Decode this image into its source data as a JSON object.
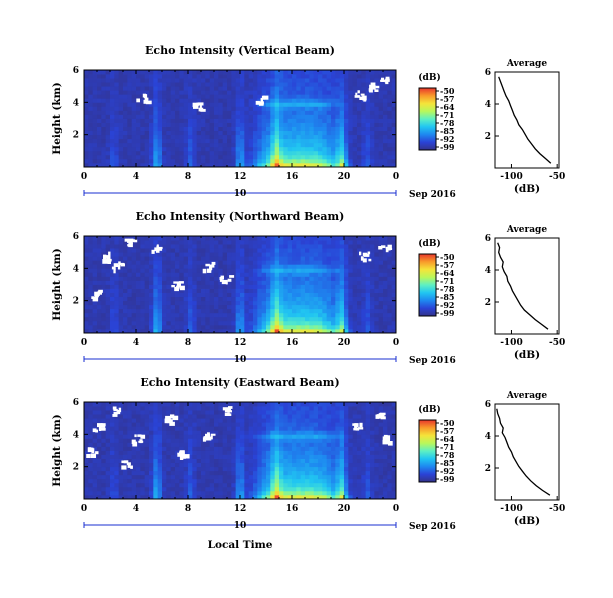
{
  "colors": {
    "colormap": [
      "#33328a",
      "#2a43d6",
      "#1e88f0",
      "#21c6f1",
      "#5ef0c3",
      "#b9f75b",
      "#f5e43a",
      "#f89a2a",
      "#e8352c"
    ],
    "missing": "#ffffff",
    "date_axis": "#1a2fd0"
  },
  "x_axis": {
    "label": "Local Time",
    "day_label": "10",
    "month_label": "Sep 2016"
  },
  "colorbar": {
    "unit": "(dB)",
    "ticks": [
      "-50",
      "-57",
      "-64",
      "-71",
      "-78",
      "-85",
      "-92",
      "-99"
    ]
  },
  "chart_data": [
    {
      "type": "heatmap",
      "title": "Echo Intensity (Vertical Beam)",
      "ylabel": "Height (km)",
      "x_ticks": [
        "0",
        "4",
        "8",
        "12",
        "16",
        "20",
        "0"
      ],
      "y_ticks": [
        "6",
        "4",
        "2"
      ],
      "xlim": [
        0,
        24
      ],
      "ylim": [
        0,
        6
      ],
      "value_range_db": [
        -99,
        -50
      ],
      "missing_patches": [
        {
          "hour": 8.7,
          "height": 3.8
        },
        {
          "hour": 13.5,
          "height": 4.2
        },
        {
          "hour": 21.2,
          "height": 4.5
        },
        {
          "hour": 22.1,
          "height": 5.0
        },
        {
          "hour": 4.4,
          "height": 4.3
        },
        {
          "hour": 23.0,
          "height": 5.6
        }
      ],
      "profile": {
        "title": "Average",
        "xlabel": "(dB)",
        "x_ticks": [
          "-100",
          "-50"
        ],
        "y_ticks": [
          "6",
          "4",
          "2"
        ],
        "xlim": [
          -118,
          -48
        ],
        "ylim": [
          0,
          6
        ],
        "height_km": [
          0.3,
          0.6,
          0.9,
          1.2,
          1.5,
          1.8,
          2.1,
          2.4,
          2.7,
          3.0,
          3.3,
          3.6,
          3.9,
          4.2,
          4.5,
          4.8,
          5.1,
          5.4,
          5.7
        ],
        "value_db": [
          -57,
          -63,
          -69,
          -74,
          -78,
          -82,
          -85,
          -88,
          -92,
          -94,
          -97,
          -99,
          -101,
          -103,
          -106,
          -108,
          -110,
          -112,
          -114
        ]
      }
    },
    {
      "type": "heatmap",
      "title": "Echo Intensity (Northward Beam)",
      "ylabel": "Height (km)",
      "x_ticks": [
        "0",
        "4",
        "8",
        "12",
        "16",
        "20",
        "0"
      ],
      "y_ticks": [
        "6",
        "4",
        "2"
      ],
      "xlim": [
        0,
        24
      ],
      "ylim": [
        0,
        6
      ],
      "value_range_db": [
        -99,
        -50
      ],
      "missing_patches": [
        {
          "hour": 1.5,
          "height": 4.8
        },
        {
          "hour": 2.5,
          "height": 4.2
        },
        {
          "hour": 5.5,
          "height": 5.3
        },
        {
          "hour": 9.5,
          "height": 4.2
        },
        {
          "hour": 7.0,
          "height": 3.0
        },
        {
          "hour": 21.5,
          "height": 4.8
        },
        {
          "hour": 23.0,
          "height": 5.3
        },
        {
          "hour": 0.8,
          "height": 2.5
        },
        {
          "hour": 3.5,
          "height": 5.6
        },
        {
          "hour": 10.8,
          "height": 3.5
        }
      ],
      "profile": {
        "title": "Average",
        "xlabel": "(dB)",
        "x_ticks": [
          "-100",
          "-50"
        ],
        "y_ticks": [
          "6",
          "4",
          "2"
        ],
        "xlim": [
          -118,
          -48
        ],
        "ylim": [
          0,
          6
        ],
        "height_km": [
          0.3,
          0.6,
          0.9,
          1.2,
          1.5,
          1.8,
          2.1,
          2.4,
          2.7,
          3.0,
          3.3,
          3.6,
          3.9,
          4.2,
          4.5,
          4.8,
          5.1,
          5.4,
          5.7
        ],
        "value_db": [
          -60,
          -67,
          -74,
          -80,
          -86,
          -90,
          -93,
          -96,
          -99,
          -101,
          -104,
          -105,
          -108,
          -110,
          -109,
          -112,
          -114,
          -113,
          -115
        ]
      }
    },
    {
      "type": "heatmap",
      "title": "Echo Intensity (Eastward Beam)",
      "ylabel": "Height (km)",
      "x_ticks": [
        "0",
        "4",
        "8",
        "12",
        "16",
        "20",
        "0"
      ],
      "y_ticks": [
        "6",
        "4",
        "2"
      ],
      "xlim": [
        0,
        24
      ],
      "ylim": [
        0,
        6
      ],
      "value_range_db": [
        -99,
        -50
      ],
      "missing_patches": [
        {
          "hour": 1.0,
          "height": 4.5
        },
        {
          "hour": 2.5,
          "height": 5.5
        },
        {
          "hour": 4.0,
          "height": 3.8
        },
        {
          "hour": 6.5,
          "height": 5.0
        },
        {
          "hour": 9.5,
          "height": 4.0
        },
        {
          "hour": 7.5,
          "height": 2.8
        },
        {
          "hour": 21.0,
          "height": 4.5
        },
        {
          "hour": 22.5,
          "height": 5.2
        },
        {
          "hour": 11.0,
          "height": 5.5
        },
        {
          "hour": 0.5,
          "height": 3.0
        },
        {
          "hour": 3.2,
          "height": 2.3
        },
        {
          "hour": 23.3,
          "height": 3.8
        }
      ],
      "profile": {
        "title": "Average",
        "xlabel": "(dB)",
        "x_ticks": [
          "-100",
          "-50"
        ],
        "y_ticks": [
          "6",
          "4",
          "2"
        ],
        "xlim": [
          -118,
          -48
        ],
        "ylim": [
          0,
          6
        ],
        "height_km": [
          0.3,
          0.6,
          0.9,
          1.2,
          1.5,
          1.8,
          2.1,
          2.4,
          2.7,
          3.0,
          3.3,
          3.6,
          3.9,
          4.2,
          4.5,
          4.8,
          5.1,
          5.4,
          5.7
        ],
        "value_db": [
          -58,
          -66,
          -73,
          -79,
          -84,
          -88,
          -92,
          -95,
          -98,
          -100,
          -103,
          -105,
          -107,
          -110,
          -109,
          -112,
          -113,
          -115,
          -116
        ]
      }
    }
  ]
}
